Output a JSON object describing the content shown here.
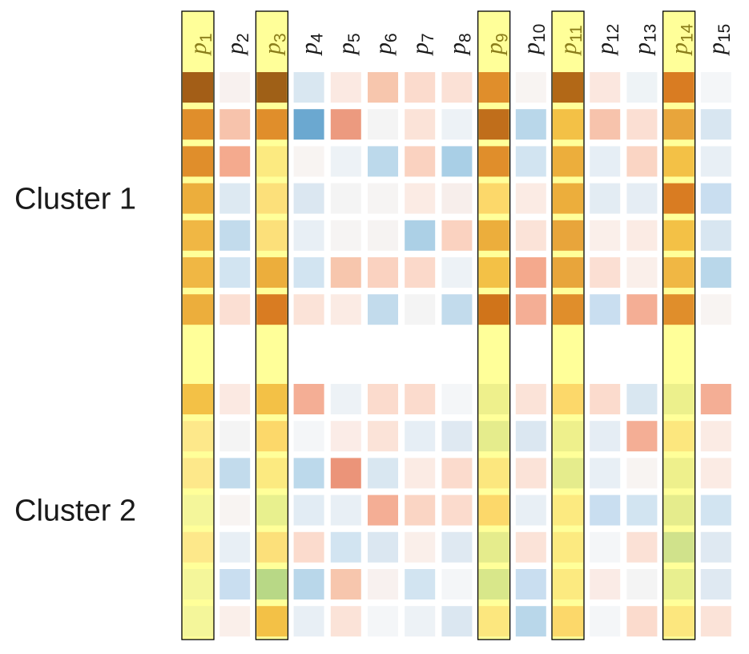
{
  "chart_data": {
    "type": "heatmap",
    "columns": [
      "1",
      "2",
      "3",
      "4",
      "5",
      "6",
      "7",
      "8",
      "9",
      "10",
      "11",
      "12",
      "13",
      "14",
      "15"
    ],
    "column_prefix": "p",
    "highlighted_columns": [
      "1",
      "3",
      "9",
      "11",
      "14"
    ],
    "clusters": [
      {
        "label": "Cluster 1",
        "rows": [
          [
            "#a35e17",
            "#f8f1ef",
            "#9f6017",
            "#d9e7f1",
            "#fbe9e2",
            "#f7c6ad",
            "#fbdbcd",
            "#fbe1d6",
            "#e08e2b",
            "#f8f4f2",
            "#b26817",
            "#fbe7df",
            "#eef3f6",
            "#d97c22",
            "#f4f6f8"
          ],
          [
            "#e08e2b",
            "#f7c3ac",
            "#e08e2b",
            "#6ba8d0",
            "#ec9a7f",
            "#f4f4f4",
            "#fbe3d8",
            "#edf2f6",
            "#c06e1b",
            "#b9d7ea",
            "#f3c146",
            "#f7c3ac",
            "#fbdfd3",
            "#e8a53b",
            "#d8e6f1"
          ],
          [
            "#e08e2b",
            "#f4aa8e",
            "#fcea80",
            "#f8f4f2",
            "#edf2f6",
            "#bcd9eb",
            "#fad2c0",
            "#a9cfe6",
            "#e08e2b",
            "#d2e4f1",
            "#ecae3c",
            "#e6eef5",
            "#fad5c4",
            "#f3c146",
            "#e8eff5"
          ],
          [
            "#ecae3c",
            "#dde9f2",
            "#fce07a",
            "#dbe7f1",
            "#f4f4f4",
            "#f6f4f3",
            "#fbebe4",
            "#f7eeeb",
            "#fcd86a",
            "#fbebe4",
            "#ecae3c",
            "#e3ecf3",
            "#e5edf4",
            "#d97c22",
            "#c9def0"
          ],
          [
            "#f0b744",
            "#c2dbec",
            "#fce07a",
            "#e8eff5",
            "#f6f4f3",
            "#f6f3f2",
            "#acd0e6",
            "#fad2c0",
            "#ecae3c",
            "#fbe3d8",
            "#e8a53b",
            "#faefea",
            "#fbebe4",
            "#f3c146",
            "#d8e6f1"
          ],
          [
            "#f0b744",
            "#d2e4f1",
            "#ecae3c",
            "#d2e4f1",
            "#f7c6ad",
            "#fad2c0",
            "#fbd9ca",
            "#edf2f6",
            "#f3c146",
            "#f4a98d",
            "#e8a53b",
            "#fbdfd3",
            "#faefea",
            "#f0b744",
            "#b9d7ea"
          ],
          [
            "#ecae3c",
            "#fbdfd3",
            "#d97c22",
            "#fbe3d8",
            "#fbebe4",
            "#c2dbec",
            "#f4f4f4",
            "#c2dbec",
            "#d0741a",
            "#f4ae95",
            "#e08e2b",
            "#c9def0",
            "#f4ae95",
            "#e08e2b",
            "#f8f4f2"
          ]
        ]
      },
      {
        "label": "Cluster 2",
        "rows": [
          [
            "#f3c146",
            "#fbe9e2",
            "#f3c146",
            "#f4ae95",
            "#edf2f6",
            "#fbdbcd",
            "#fbdbcd",
            "#f4f6f8",
            "#eef08c",
            "#fbe3d8",
            "#fcd86a",
            "#fbdbcd",
            "#d9e7f1",
            "#ecf08c",
            "#f4ae95"
          ],
          [
            "#fde88a",
            "#f4f4f4",
            "#fcd86a",
            "#f4f6f8",
            "#fbece7",
            "#fbe3d8",
            "#e6eef5",
            "#dfe9f2",
            "#e5ec8c",
            "#dbe7f1",
            "#eef08c",
            "#e5edf4",
            "#f4ae95",
            "#fce77e",
            "#fbebe4"
          ],
          [
            "#fde88a",
            "#c2dbec",
            "#fcea80",
            "#bcd9eb",
            "#eb9479",
            "#d9e7f1",
            "#fbebe4",
            "#fbdbcd",
            "#fce77e",
            "#fbe3d8",
            "#e5ec8c",
            "#e8eff5",
            "#f8f4f2",
            "#eef08c",
            "#fbebe4"
          ],
          [
            "#f4f69a",
            "#f8f4f2",
            "#e8f08e",
            "#e2ecf4",
            "#e8eff5",
            "#f4ae95",
            "#fad5c4",
            "#fbdbcd",
            "#fcd86a",
            "#e8eff5",
            "#fcea80",
            "#c9def0",
            "#d2e4f1",
            "#e5ec8c",
            "#d2e4f1"
          ],
          [
            "#fde88a",
            "#e8eff5",
            "#fce07a",
            "#fbdbcd",
            "#d2e4f1",
            "#dbe7f1",
            "#faefea",
            "#dfe9f2",
            "#e5ec8c",
            "#fbe3d8",
            "#fcea80",
            "#f4f6f8",
            "#fbe1d6",
            "#d0e28b",
            "#dfe9f2"
          ],
          [
            "#f4f69a",
            "#c9def0",
            "#b8d886",
            "#b9d7ea",
            "#f7c6ad",
            "#f8f1ef",
            "#d2e4f1",
            "#f4f6f8",
            "#d8e78a",
            "#c9def0",
            "#fcea80",
            "#faebe6",
            "#f4f4f4",
            "#e8ef8f",
            "#dfe9f2"
          ],
          [
            "#f4f69a",
            "#faefea",
            "#f3c146",
            "#e8eff5",
            "#fbe3d8",
            "#f4f6f8",
            "#edf2f6",
            "#dbe7f1",
            "#fce77e",
            "#b9d7ea",
            "#fcd86a",
            "#f4f6f8",
            "#fbdbcd",
            "#fce77e",
            "#fbe3d8"
          ]
        ]
      }
    ]
  },
  "colors": {
    "highlight_fill": "#ffff99",
    "highlight_stroke": "#000000",
    "highlight_text": "#8a7d1a"
  }
}
